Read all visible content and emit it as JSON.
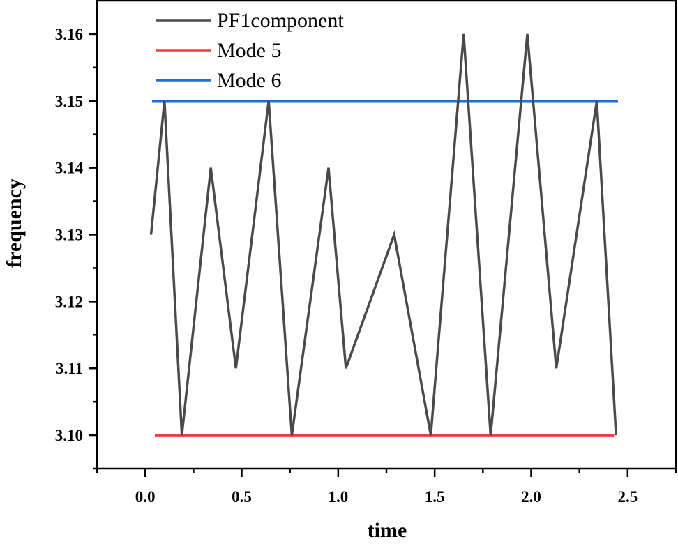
{
  "chart_data": {
    "type": "line",
    "title": "",
    "xlabel": "time",
    "ylabel": "frequency",
    "xlim": [
      -0.25,
      2.75
    ],
    "ylim": [
      3.095,
      3.165
    ],
    "x_ticks": [
      "0.0",
      "0.5",
      "1.0",
      "1.5",
      "2.0",
      "2.5"
    ],
    "x_tick_values": [
      0.0,
      0.5,
      1.0,
      1.5,
      2.0,
      2.5
    ],
    "y_ticks": [
      "3.10",
      "3.11",
      "3.12",
      "3.13",
      "3.14",
      "3.15",
      "3.16"
    ],
    "y_tick_values": [
      3.1,
      3.11,
      3.12,
      3.13,
      3.14,
      3.15,
      3.16
    ],
    "grid": false,
    "legend_position": "upper-left-inside",
    "series": [
      {
        "name": "PF1component",
        "color": "#4a4a4a",
        "x": [
          0.03,
          0.1,
          0.19,
          0.34,
          0.47,
          0.64,
          0.76,
          0.95,
          1.04,
          1.29,
          1.48,
          1.65,
          1.79,
          1.98,
          2.13,
          2.34,
          2.44
        ],
        "values": [
          3.13,
          3.15,
          3.1,
          3.14,
          3.11,
          3.15,
          3.1,
          3.14,
          3.11,
          3.13,
          3.1,
          3.16,
          3.1,
          3.16,
          3.11,
          3.15,
          3.1
        ]
      },
      {
        "name": "Mode 5",
        "color": "#ee3b3b",
        "x": [
          0.05,
          2.43
        ],
        "values": [
          3.1,
          3.1
        ]
      },
      {
        "name": "Mode 6",
        "color": "#1f6fd6",
        "x": [
          0.035,
          2.45
        ],
        "values": [
          3.15,
          3.15
        ]
      }
    ]
  }
}
